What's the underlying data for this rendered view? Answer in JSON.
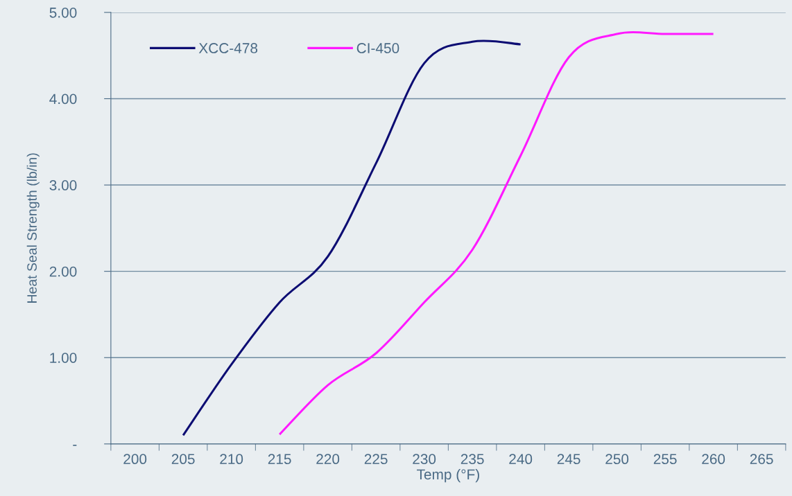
{
  "chart_data": {
    "type": "line",
    "xlabel": "Temp (°F)",
    "ylabel": "Heat Seal Strength (lb/in)",
    "categories": [
      "200",
      "205",
      "210",
      "215",
      "220",
      "225",
      "230",
      "235",
      "240",
      "245",
      "250",
      "255",
      "260",
      "265"
    ],
    "series": [
      {
        "name": "XCC-478",
        "color": "#0d0d73",
        "values": [
          null,
          0.1,
          0.92,
          1.64,
          2.17,
          3.25,
          4.41,
          4.66,
          4.63,
          null,
          null,
          null,
          null,
          null
        ]
      },
      {
        "name": "CI-450",
        "color": "#ff19ff",
        "values": [
          null,
          null,
          null,
          0.11,
          0.68,
          1.05,
          1.64,
          2.25,
          3.34,
          4.48,
          4.75,
          4.75,
          4.75,
          null
        ]
      }
    ],
    "ylim": [
      0,
      5
    ],
    "yticks": [
      {
        "value": 0,
        "label": "-"
      },
      {
        "value": 1,
        "label": "1.00"
      },
      {
        "value": 2,
        "label": "2.00"
      },
      {
        "value": 3,
        "label": "3.00"
      },
      {
        "value": 4,
        "label": "4.00"
      },
      {
        "value": 5,
        "label": "5.00"
      }
    ],
    "grid": "y",
    "legend": "top left",
    "line_style": "solid",
    "marker": "none"
  }
}
